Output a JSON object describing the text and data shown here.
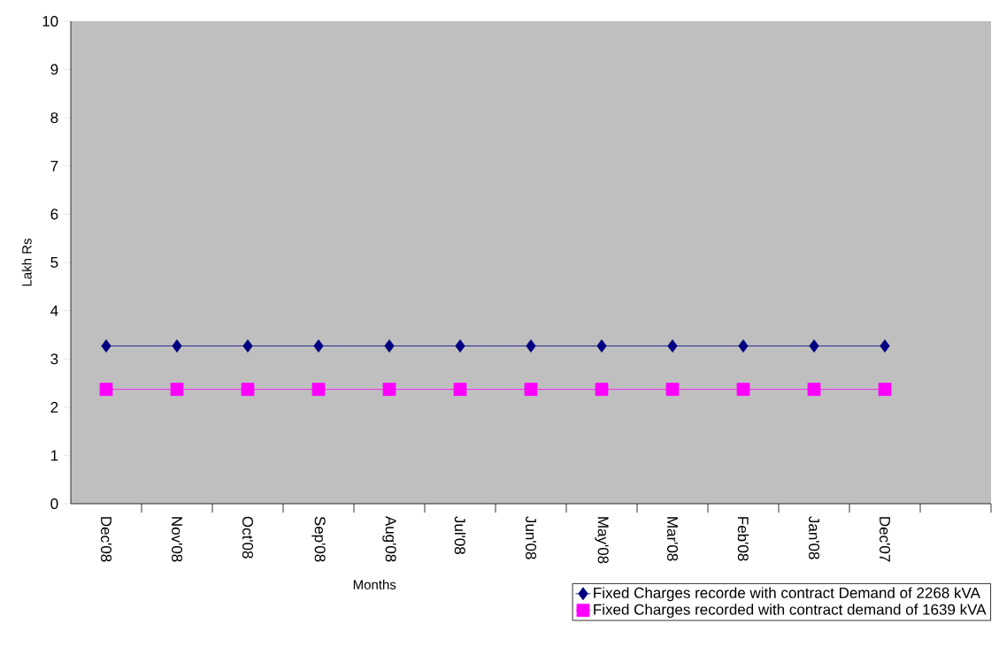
{
  "chart_data": {
    "type": "line",
    "xlabel": "Months",
    "ylabel": "Lakh Rs",
    "categories": [
      "Dec'08",
      "Nov'08",
      "Oct'08",
      "Sep'08",
      "Aug'08",
      "Jul'08",
      "Jun'08",
      "May'08",
      "Mar'08",
      "Feb'08",
      "Jan'08",
      "Dec'07",
      null
    ],
    "series": [
      {
        "name": "Fixed Charges recorde with contract Demand of 2268 kVA",
        "color": "#000080",
        "marker": "diamond",
        "values": [
          3.27,
          3.27,
          3.27,
          3.27,
          3.27,
          3.27,
          3.27,
          3.27,
          3.27,
          3.27,
          3.27,
          3.27,
          null
        ]
      },
      {
        "name": "Fixed Charges recorded with contract demand of 1639 kVA",
        "color": "#ff00ff",
        "marker": "square",
        "values": [
          2.37,
          2.37,
          2.37,
          2.37,
          2.37,
          2.37,
          2.37,
          2.37,
          2.37,
          2.37,
          2.37,
          2.37,
          null
        ]
      }
    ],
    "ylim": [
      0,
      10
    ],
    "yticks": [
      0,
      1,
      2,
      3,
      4,
      5,
      6,
      7,
      8,
      9,
      10
    ],
    "grid": false,
    "legend": "bottom right",
    "line_style": "solid"
  }
}
